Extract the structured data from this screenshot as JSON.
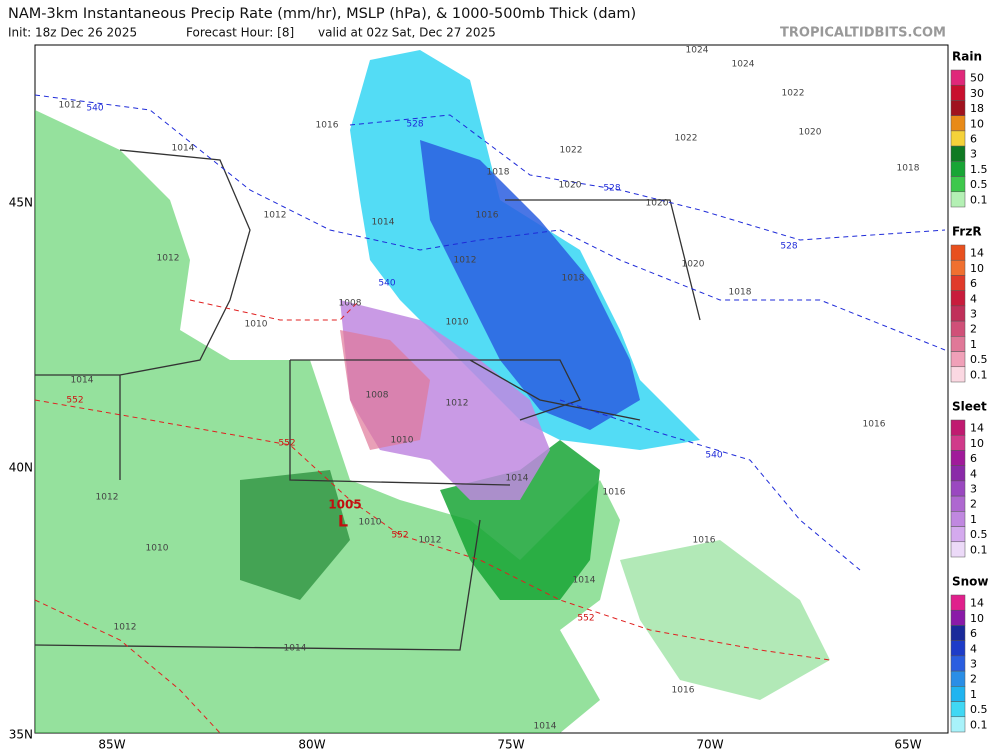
{
  "header": {
    "title": "NAM-3km Instantaneous Precip Rate (mm/hr), MSLP (hPa), & 1000-500mb Thick (dam)",
    "init": "Init: 18z Dec 26 2025",
    "forecast_hour": "Forecast Hour: [8]",
    "valid": "valid at 02z Sat, Dec 27 2025",
    "source": "TROPICALTIDBITS.COM"
  },
  "map": {
    "lat_labels": [
      "45N",
      "40N",
      "35N"
    ],
    "lon_labels": [
      "85W",
      "80W",
      "75W",
      "70W",
      "65W"
    ],
    "low": {
      "pressure": "1005",
      "symbol": "L"
    },
    "contour_labels": [
      "1012",
      "540",
      "1016",
      "1014",
      "1012",
      "1014",
      "1012",
      "1008",
      "1010",
      "1010",
      "1014",
      "552",
      "1008",
      "1012",
      "552",
      "1010",
      "1012",
      "1014",
      "1010",
      "552",
      "1012",
      "1010",
      "1012",
      "1014",
      "1014",
      "552",
      "1014",
      "1016",
      "1016",
      "1016",
      "540",
      "1016",
      "1018",
      "1018",
      "1020",
      "1020",
      "1022",
      "1024",
      "1024",
      "1022",
      "1022",
      "1018",
      "1020",
      "528",
      "1020",
      "1016",
      "528",
      "1018",
      "528",
      "540",
      "1012"
    ]
  },
  "legends": [
    {
      "title": "Rain",
      "labels": [
        "50",
        "30",
        "18",
        "10",
        "6",
        "3",
        "1.5",
        "0.5",
        "0.1"
      ],
      "colors": [
        "#e0287a",
        "#c8102e",
        "#a0121e",
        "#e88a18",
        "#f5d23a",
        "#0f7a23",
        "#18a535",
        "#3ec84c",
        "#b4f0b4"
      ]
    },
    {
      "title": "FrzR",
      "labels": [
        "14",
        "10",
        "6",
        "4",
        "3",
        "2",
        "1",
        "0.5",
        "0.1"
      ],
      "colors": [
        "#e8501e",
        "#f07030",
        "#e03a2a",
        "#c81c3c",
        "#c0305a",
        "#d05078",
        "#e07898",
        "#f0a0b8",
        "#fbd8e2"
      ]
    },
    {
      "title": "Sleet",
      "labels": [
        "14",
        "10",
        "6",
        "4",
        "3",
        "2",
        "1",
        "0.5",
        "0.1"
      ],
      "colors": [
        "#c01a70",
        "#d03a8a",
        "#a01a9a",
        "#8a2aa8",
        "#9a48c0",
        "#ae68d0",
        "#c088e0",
        "#d4aaee",
        "#ecdaf8"
      ]
    },
    {
      "title": "Snow",
      "labels": [
        "14",
        "10",
        "6",
        "4",
        "3",
        "2",
        "1",
        "0.5",
        "0.1"
      ],
      "colors": [
        "#e0208c",
        "#8a1aa8",
        "#1a2a9a",
        "#1e3cc8",
        "#2a5ee0",
        "#2a8ee6",
        "#20b4f0",
        "#40d8f4",
        "#a8f2fa"
      ]
    }
  ]
}
